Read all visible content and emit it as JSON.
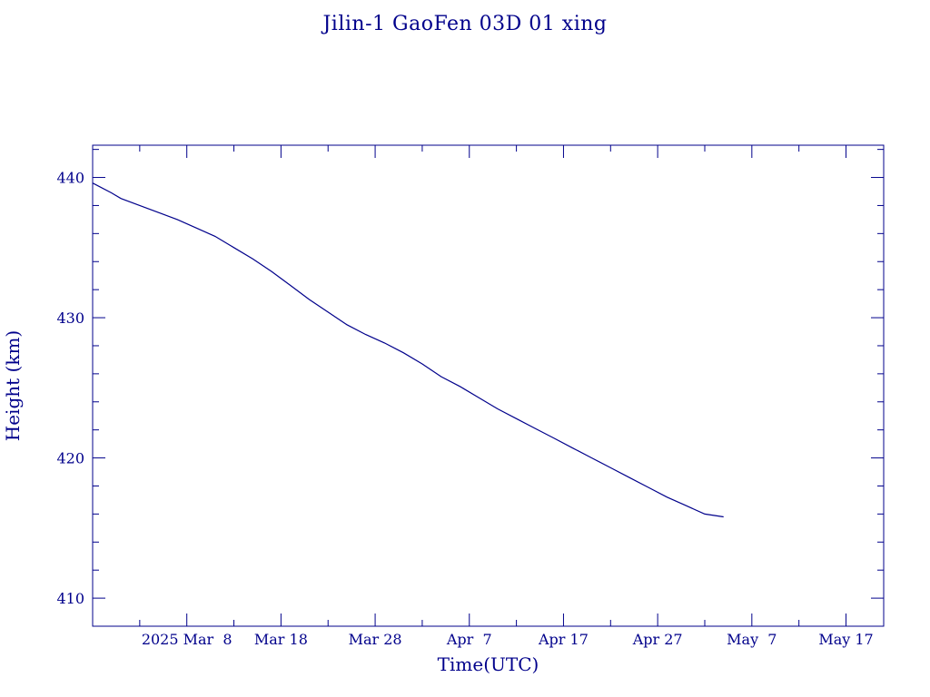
{
  "chart_data": {
    "type": "line",
    "title": "Jilin-1 GaoFen 03D 01 xing",
    "xlabel": "Time(UTC)",
    "ylabel": "Height (km)",
    "x_tick_labels": [
      "2025 Mar  8",
      "Mar 18",
      "Mar 28",
      "Apr  7",
      "Apr 17",
      "Apr 27",
      "May  7",
      "May 17"
    ],
    "x_tick_dates": [
      "2025-03-08",
      "2025-03-18",
      "2025-03-28",
      "2025-04-07",
      "2025-04-17",
      "2025-04-27",
      "2025-05-07",
      "2025-05-17"
    ],
    "xlim": [
      "2025-02-26",
      "2025-05-21"
    ],
    "ylim": [
      408,
      442.3
    ],
    "y_ticks": [
      410,
      420,
      430,
      440
    ],
    "grid": false,
    "line_color": "#00008b",
    "series": [
      {
        "x": [
          "2025-02-26",
          "2025-02-28",
          "2025-03-01",
          "2025-03-03",
          "2025-03-05",
          "2025-03-07",
          "2025-03-09",
          "2025-03-11",
          "2025-03-13",
          "2025-03-15",
          "2025-03-17",
          "2025-03-19",
          "2025-03-21",
          "2025-03-23",
          "2025-03-25",
          "2025-03-27",
          "2025-03-29",
          "2025-03-31",
          "2025-04-02",
          "2025-04-04",
          "2025-04-06",
          "2025-04-08",
          "2025-04-10",
          "2025-04-12",
          "2025-04-14",
          "2025-04-16",
          "2025-04-18",
          "2025-04-20",
          "2025-04-22",
          "2025-04-24",
          "2025-04-26",
          "2025-04-28",
          "2025-04-30",
          "2025-05-02",
          "2025-05-04"
        ],
        "y": [
          439.6,
          438.9,
          438.5,
          438.0,
          437.5,
          437.0,
          436.4,
          435.8,
          435.0,
          434.2,
          433.3,
          432.3,
          431.3,
          430.4,
          429.5,
          428.8,
          428.2,
          427.5,
          426.7,
          425.8,
          425.1,
          424.3,
          423.5,
          422.8,
          422.1,
          421.4,
          420.7,
          420.0,
          419.3,
          418.6,
          417.9,
          417.2,
          416.6,
          416.0,
          415.8
        ]
      }
    ]
  }
}
